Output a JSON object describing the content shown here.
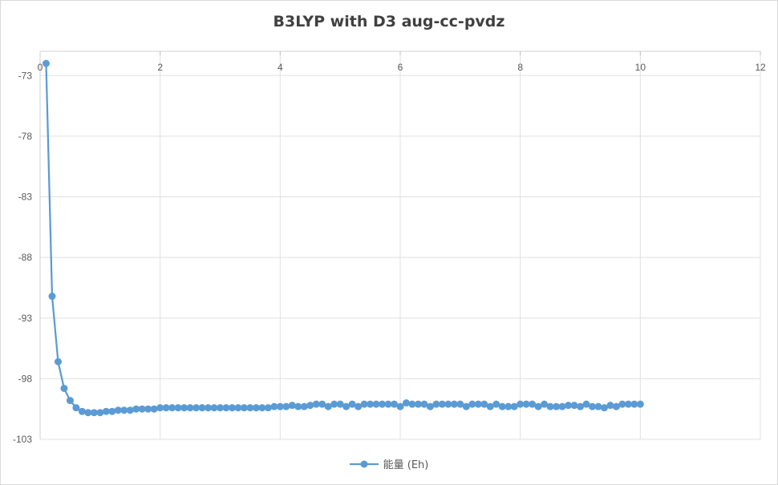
{
  "chart_data": {
    "type": "line",
    "title": "B3LYP with D3 aug-cc-pvdz",
    "xlabel": "",
    "ylabel": "",
    "xlim": [
      0,
      12
    ],
    "ylim": [
      -103,
      -71
    ],
    "x_ticks": [
      0,
      2,
      4,
      6,
      8,
      10,
      12
    ],
    "y_ticks": [
      -73,
      -78,
      -83,
      -88,
      -93,
      -98,
      -103
    ],
    "grid": true,
    "legend_position": "bottom",
    "series": [
      {
        "name": "能量 (Eh)",
        "color": "#5b9bd5",
        "marker": "circle",
        "x": [
          0.1,
          0.2,
          0.3,
          0.4,
          0.5,
          0.6,
          0.7,
          0.8,
          0.9,
          1.0,
          1.1,
          1.2,
          1.3,
          1.4,
          1.5,
          1.6,
          1.7,
          1.8,
          1.9,
          2.0,
          2.1,
          2.2,
          2.3,
          2.4,
          2.5,
          2.6,
          2.7,
          2.8,
          2.9,
          3.0,
          3.1,
          3.2,
          3.3,
          3.4,
          3.5,
          3.6,
          3.7,
          3.8,
          3.9,
          4.0,
          4.1,
          4.2,
          4.3,
          4.4,
          4.5,
          4.6,
          4.7,
          4.8,
          4.9,
          5.0,
          5.1,
          5.2,
          5.3,
          5.4,
          5.5,
          5.6,
          5.7,
          5.8,
          5.9,
          6.0,
          6.1,
          6.2,
          6.3,
          6.4,
          6.5,
          6.6,
          6.7,
          6.8,
          6.9,
          7.0,
          7.1,
          7.2,
          7.3,
          7.4,
          7.5,
          7.6,
          7.7,
          7.8,
          7.9,
          8.0,
          8.1,
          8.2,
          8.3,
          8.4,
          8.5,
          8.6,
          8.7,
          8.8,
          8.9,
          9.0,
          9.1,
          9.2,
          9.3,
          9.4,
          9.5,
          9.6,
          9.7,
          9.8,
          9.9,
          10.0
        ],
        "values": [
          -72.0,
          -91.2,
          -96.6,
          -98.8,
          -99.8,
          -100.4,
          -100.7,
          -100.8,
          -100.8,
          -100.8,
          -100.7,
          -100.7,
          -100.6,
          -100.6,
          -100.6,
          -100.5,
          -100.5,
          -100.5,
          -100.5,
          -100.4,
          -100.4,
          -100.4,
          -100.4,
          -100.4,
          -100.4,
          -100.4,
          -100.4,
          -100.4,
          -100.4,
          -100.4,
          -100.4,
          -100.4,
          -100.4,
          -100.4,
          -100.4,
          -100.4,
          -100.4,
          -100.4,
          -100.3,
          -100.3,
          -100.3,
          -100.2,
          -100.3,
          -100.3,
          -100.2,
          -100.1,
          -100.1,
          -100.3,
          -100.1,
          -100.1,
          -100.3,
          -100.1,
          -100.3,
          -100.1,
          -100.1,
          -100.1,
          -100.1,
          -100.1,
          -100.1,
          -100.3,
          -100.0,
          -100.1,
          -100.1,
          -100.1,
          -100.3,
          -100.1,
          -100.1,
          -100.1,
          -100.1,
          -100.1,
          -100.3,
          -100.1,
          -100.1,
          -100.1,
          -100.3,
          -100.1,
          -100.3,
          -100.3,
          -100.3,
          -100.1,
          -100.1,
          -100.1,
          -100.3,
          -100.1,
          -100.3,
          -100.3,
          -100.3,
          -100.2,
          -100.2,
          -100.3,
          -100.1,
          -100.3,
          -100.3,
          -100.4,
          -100.2,
          -100.3,
          -100.1,
          -100.1,
          -100.1,
          -100.1
        ]
      }
    ]
  }
}
